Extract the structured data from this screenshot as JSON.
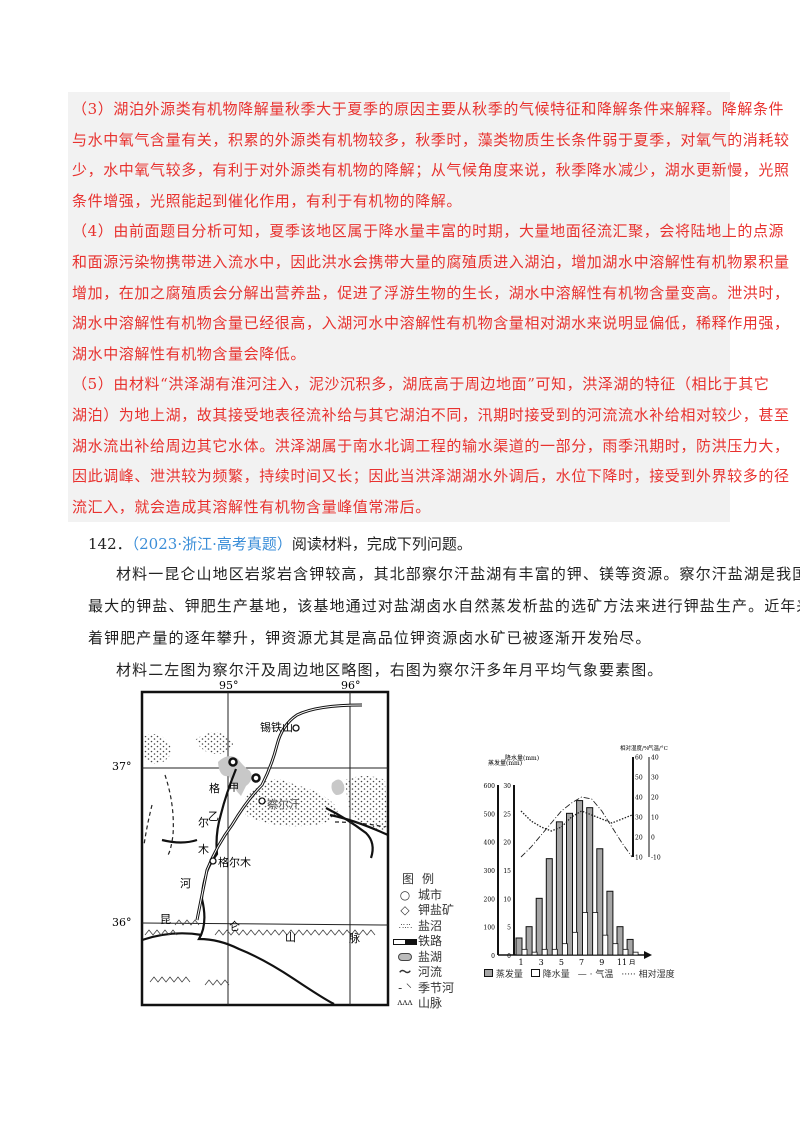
{
  "answer": {
    "lines": [
      "（3）湖泊外源类有机物降解量秋季大于夏季的原因主要从秋季的气候特征和降解条件来解释。降解条件",
      "与水中氧气含量有关，积累的外源类有机物较多，秋季时，藻类物质生长条件弱于夏季，对氧气的消耗较",
      "少，水中氧气较多，有利于对外源类有机物的降解；从气候角度来说，秋季降水减少，湖水更新慢，光照",
      "条件增强，光照能起到催化作用，有利于有机物的降解。",
      "（4）由前面题目分析可知，夏季该地区属于降水量丰富的时期，大量地面径流汇聚，会将陆地上的点源",
      "和面源污染物携带进入流水中，因此洪水会携带大量的腐殖质进入湖泊，增加湖水中溶解性有机物累积量",
      "增加，在加之腐殖质会分解出营养盐，促进了浮游生物的生长，湖水中溶解性有机物含量变高。泄洪时，",
      "湖水中溶解性有机物含量已经很高，入湖河水中溶解性有机物含量相对湖水来说明显偏低，稀释作用强，",
      "湖水中溶解性有机物含量会降低。",
      "（5）由材料“洪泽湖有淮河注入，泥沙沉积多，湖底高于周边地面”可知，洪泽湖的特征（相比于其它",
      "湖泊）为地上湖，故其接受地表径流补给与其它湖泊不同，汛期时接受到的河流流水补给相对较少，甚至",
      "湖水流出补给周边其它水体。洪泽湖属于南水北调工程的输水渠道的一部分，雨季汛期时，防洪压力大，",
      "因此调峰、泄洪较为频繁，持续时间又长；因此当洪泽湖湖水外调后，水位下降时，接受到外界较多的径",
      "流汇入，就会造成其溶解性有机物含量峰值常滞后。"
    ]
  },
  "question": {
    "number": "142．",
    "source": "（2023·浙江·高考真题）",
    "prompt": "阅读材料，完成下列问题。",
    "material_lines": [
      "材料一昆仑山地区岩浆岩含钾较高，其北部察尔汗盐湖有丰富的钾、镁等资源。察尔汗盐湖是我国",
      "最大的钾盐、钾肥生产基地，该基地通过对盐湖卤水自然蒸发析盐的选矿方法来进行钾盐生产。近年来随",
      "着钾肥产量的逐年攀升，钾资源尤其是高品位钾资源卤水矿已被逐渐开发殆尽。",
      "材料二左图为察尔汗及周边地区略图，右图为察尔汗多年月平均气象要素图。"
    ]
  },
  "map": {
    "lon_labels": [
      "95°",
      "96°"
    ],
    "lat_labels": [
      "37°",
      "36°"
    ],
    "places": {
      "xitieshan": "锡铁山",
      "chaerhan": "察尔汗",
      "geermu": "格尔木",
      "jia": "甲",
      "yi": "乙"
    },
    "river_chars": [
      "格",
      "尔",
      "木",
      "河"
    ],
    "mountain_chars": [
      "昆",
      "仑",
      "山",
      "脉"
    ],
    "legend": {
      "title": "图例",
      "items": [
        "城市",
        "钾盐矿",
        "盐沼",
        "铁路",
        "盐湖",
        "河流",
        "季节河",
        "山脉"
      ]
    }
  },
  "chart_data": {
    "type": "bar+line",
    "categories": [
      1,
      2,
      3,
      4,
      5,
      6,
      7,
      8,
      9,
      10,
      11,
      12
    ],
    "x_tick_labels": [
      "1",
      "3",
      "5",
      "7",
      "9",
      "11"
    ],
    "x_unit": "月",
    "axes": {
      "evaporation": {
        "label": "蒸发量(mm)",
        "range": [
          0,
          600
        ],
        "ticks": [
          0,
          100,
          200,
          300,
          400,
          500,
          600
        ]
      },
      "precipitation": {
        "label": "降水量(mm)",
        "range": [
          0,
          30
        ],
        "ticks": [
          0,
          5,
          10,
          15,
          20,
          25,
          30
        ]
      },
      "humidity": {
        "label": "相对湿度/%",
        "range": [
          10,
          60
        ],
        "ticks": [
          10,
          20,
          30,
          40,
          50,
          60
        ]
      },
      "temperature": {
        "label": "气温/°C",
        "range": [
          -10,
          40
        ],
        "ticks": [
          -10,
          0,
          10,
          20,
          30,
          40
        ]
      }
    },
    "series": [
      {
        "name": "蒸发量",
        "kind": "bar",
        "axis": "evaporation",
        "color": "#a6a6a6",
        "values": [
          60,
          100,
          200,
          340,
          470,
          500,
          545,
          520,
          375,
          225,
          100,
          55
        ]
      },
      {
        "name": "降水量",
        "kind": "bar",
        "axis": "precipitation",
        "color": "#ffffff",
        "values": [
          1,
          0.5,
          1,
          1,
          2,
          4,
          7.5,
          7.5,
          3.5,
          2,
          1,
          0.5
        ]
      },
      {
        "name": "气温",
        "kind": "line",
        "style": "dash-dot",
        "axis": "temperature",
        "values": [
          -10,
          -5,
          1,
          7,
          13,
          17,
          20,
          19,
          13,
          5,
          -3,
          -10
        ]
      },
      {
        "name": "相对湿度",
        "kind": "line",
        "style": "dotted",
        "axis": "humidity",
        "values": [
          33,
          28,
          25,
          23,
          25,
          30,
          33,
          31,
          29,
          27,
          29,
          31
        ]
      }
    ],
    "legend_placement": "bottom"
  }
}
